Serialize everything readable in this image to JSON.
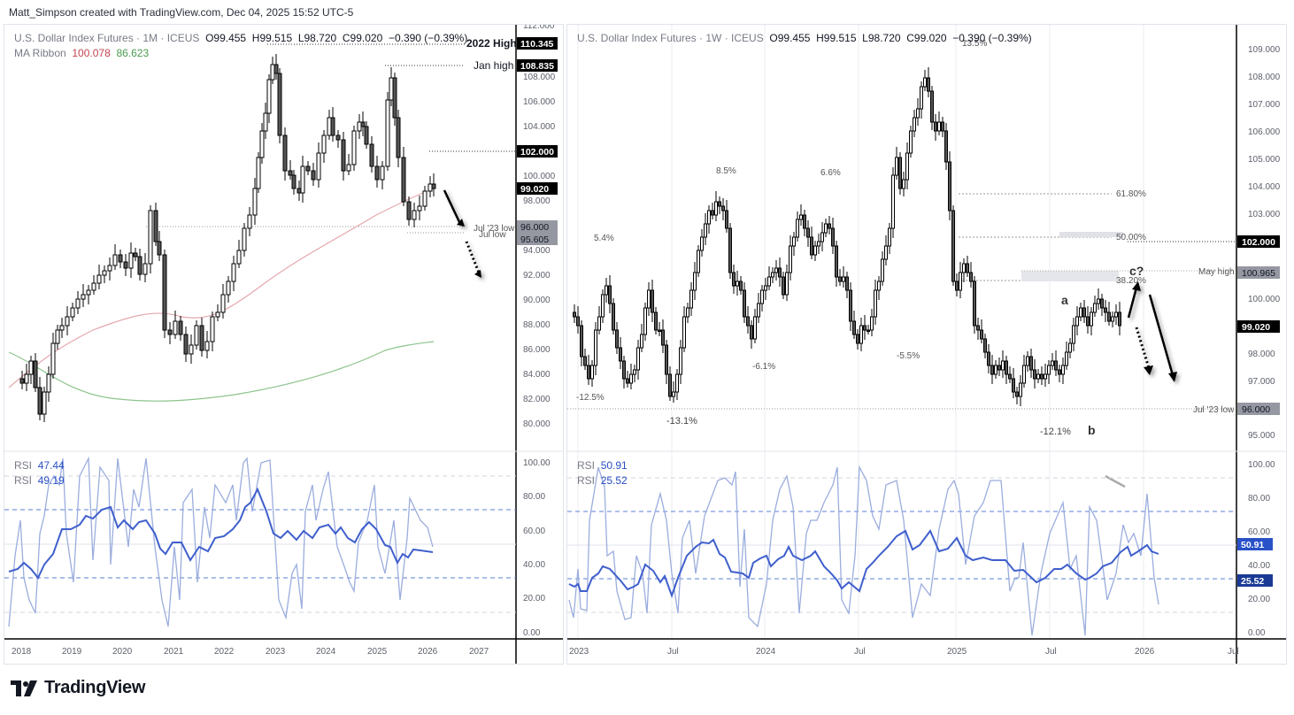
{
  "credit": "Matt_Simpson created with TradingView.com, Dec 04, 2025 15:52 UTC-5",
  "brand": "TradingView",
  "left_chart": {
    "symbol": "U.S. Dollar Index Futures · 1M · ICEUS",
    "open": "O99.455",
    "high": "H99.515",
    "low": "L98.720",
    "close": "C99.020",
    "change": "−0.390 (−0.39%)",
    "ma_label": "MA Ribbon",
    "ma_fast": "100.078",
    "ma_slow": "86.623",
    "rsi1_label": "RSI",
    "rsi1_value": "47.44",
    "rsi2_label": "RSI",
    "rsi2_value": "49.19"
  },
  "right_chart": {
    "symbol": "U.S. Dollar Index Futures · 1W · ICEUS",
    "open": "O99.455",
    "high": "H99.515",
    "low": "L98.720",
    "close": "C99.020",
    "change": "−0.390 (−0.39%)",
    "rsi1_label": "RSI",
    "rsi1_value": "50.91",
    "rsi2_label": "RSI",
    "rsi2_value": "25.52"
  },
  "chart_data": [
    {
      "type": "candlestick",
      "title": "U.S. Dollar Index Futures · 1M · ICEUS",
      "timeframe": "1M",
      "x_ticks": [
        "2018",
        "2019",
        "2020",
        "2021",
        "2022",
        "2023",
        "2024",
        "2025",
        "2026",
        "2027"
      ],
      "y_ticks": [
        80,
        82,
        84,
        86,
        88,
        90,
        92,
        94,
        96,
        98,
        100,
        102,
        104,
        106,
        108,
        110,
        112
      ],
      "ylim": [
        79,
        112
      ],
      "ohlc_last": {
        "open": 99.455,
        "high": 99.515,
        "low": 98.72,
        "close": 99.02,
        "change": -0.39,
        "change_pct": -0.39
      },
      "price_labels": [
        {
          "label": "2022 High",
          "value": 110.345
        },
        {
          "label": "Jan high",
          "value": 108.835
        },
        {
          "label": "",
          "value": 102.0
        },
        {
          "label": "Close",
          "value": 99.02
        },
        {
          "label": "Jul '23 low",
          "value": 96.0
        },
        {
          "label": "Jul low",
          "value": 95.605
        }
      ],
      "indicators": {
        "ma_ribbon": {
          "fast": 100.078,
          "slow": 86.623
        }
      },
      "approx_monthly_closes": {
        "2018": 90.0,
        "2019": 96.5,
        "2020": 96.0,
        "2021": 90.5,
        "2022": 96.0,
        "2023": 103.5,
        "2024": 101.0,
        "2025": 108.5,
        "2025-12": 99.02
      },
      "annotations": [
        "solid arrow down toward 96.000",
        "dotted arrow down toward 92.000"
      ]
    },
    {
      "type": "candlestick",
      "title": "U.S. Dollar Index Futures · 1W · ICEUS",
      "timeframe": "1W",
      "x_ticks": [
        "2023",
        "Jul",
        "2024",
        "Jul",
        "2025",
        "Jul",
        "2026",
        "Jul"
      ],
      "y_ticks": [
        95,
        96,
        97,
        98,
        99,
        100,
        101,
        102,
        103,
        104,
        105,
        106,
        107,
        108,
        109
      ],
      "ylim": [
        94.7,
        109.6
      ],
      "price_labels": [
        {
          "label": "",
          "value": 102.0
        },
        {
          "label": "May high",
          "value": 100.965
        },
        {
          "label": "Close",
          "value": 99.02
        },
        {
          "label": "Jul '23 low",
          "value": 96.0
        }
      ],
      "fibonacci": [
        {
          "level": "61.80%",
          "value": 103.8
        },
        {
          "level": "50.00%",
          "value": 102.2
        },
        {
          "level": "38.20%",
          "value": 100.6
        }
      ],
      "swing_labels": [
        "-12.5%",
        "5.4%",
        "-13.1%",
        "8.5%",
        "-6.1%",
        "6.6%",
        "-5.5%",
        "13.5%",
        "-12.1%"
      ],
      "wave_labels": [
        "a",
        "b",
        "c?"
      ],
      "annotations": [
        "arrow up to c?",
        "solid arrow down",
        "dotted arrow down"
      ]
    },
    {
      "type": "line",
      "title": "RSI (1M)",
      "series": [
        {
          "name": "RSI",
          "last": 47.44
        },
        {
          "name": "RSI",
          "last": 49.19
        }
      ],
      "y_ticks": [
        0,
        20,
        40,
        60,
        80,
        100
      ],
      "levels": [
        10,
        30,
        50,
        70,
        90
      ]
    },
    {
      "type": "line",
      "title": "RSI (1W)",
      "series": [
        {
          "name": "RSI",
          "last": 50.91
        },
        {
          "name": "RSI",
          "last": 25.52
        }
      ],
      "y_ticks": [
        0,
        20,
        40,
        60,
        80,
        100
      ],
      "levels": [
        10,
        30,
        50,
        70,
        90
      ]
    }
  ],
  "left_axis": {
    "price_ticks": [
      "112.000",
      "108.000",
      "106.000",
      "104.000",
      "100.000",
      "98.000",
      "94.000",
      "92.000",
      "90.000",
      "88.000",
      "86.000",
      "84.000",
      "82.000",
      "80.000"
    ],
    "badges": {
      "high2022": "110.345",
      "janhigh": "108.835",
      "level102": "102.000",
      "close": "99.020",
      "jul23low": "96.000",
      "jullow": "95.605"
    },
    "line_labels": {
      "high2022": "2022 High",
      "janhigh": "Jan high",
      "jul23low": "Jul '23 low",
      "jullow": "Jul low"
    },
    "rsi_ticks": [
      "100.00",
      "80.00",
      "60.00",
      "40.00",
      "20.00",
      "0.00"
    ],
    "time_ticks": [
      "2018",
      "2019",
      "2020",
      "2021",
      "2022",
      "2023",
      "2024",
      "2025",
      "2026",
      "2027"
    ]
  },
  "right_axis": {
    "price_ticks": [
      "109.000",
      "108.000",
      "107.000",
      "106.000",
      "105.000",
      "104.000",
      "103.000",
      "100.000",
      "98.000",
      "97.000",
      "95.000"
    ],
    "badges": {
      "level102": "102.000",
      "mayhigh": "100.965",
      "close": "99.020",
      "jul23low": "96.000"
    },
    "line_labels": {
      "mayhigh": "May high",
      "jul23low": "Jul '23 low"
    },
    "fib": {
      "f618": "61.80%",
      "f50": "50.00%",
      "f382": "38.20%"
    },
    "swings": {
      "s1": "-12.5%",
      "s2": "5.4%",
      "s3": "-13.1%",
      "s4": "8.5%",
      "s5": "-6.1%",
      "s6": "6.6%",
      "s7": "-5.5%",
      "s8": "13.5%",
      "s9": "-12.1%"
    },
    "waves": {
      "a": "a",
      "b": "b",
      "c": "c?"
    },
    "rsi_ticks": [
      "100.00",
      "80.00",
      "60.00",
      "40.00",
      "20.00",
      "0.00"
    ],
    "rsi_badges": {
      "r1": "50.91",
      "r2": "25.52"
    },
    "time_ticks": [
      "2023",
      "Jul",
      "2024",
      "Jul",
      "2025",
      "Jul",
      "2026",
      "Jul"
    ]
  }
}
